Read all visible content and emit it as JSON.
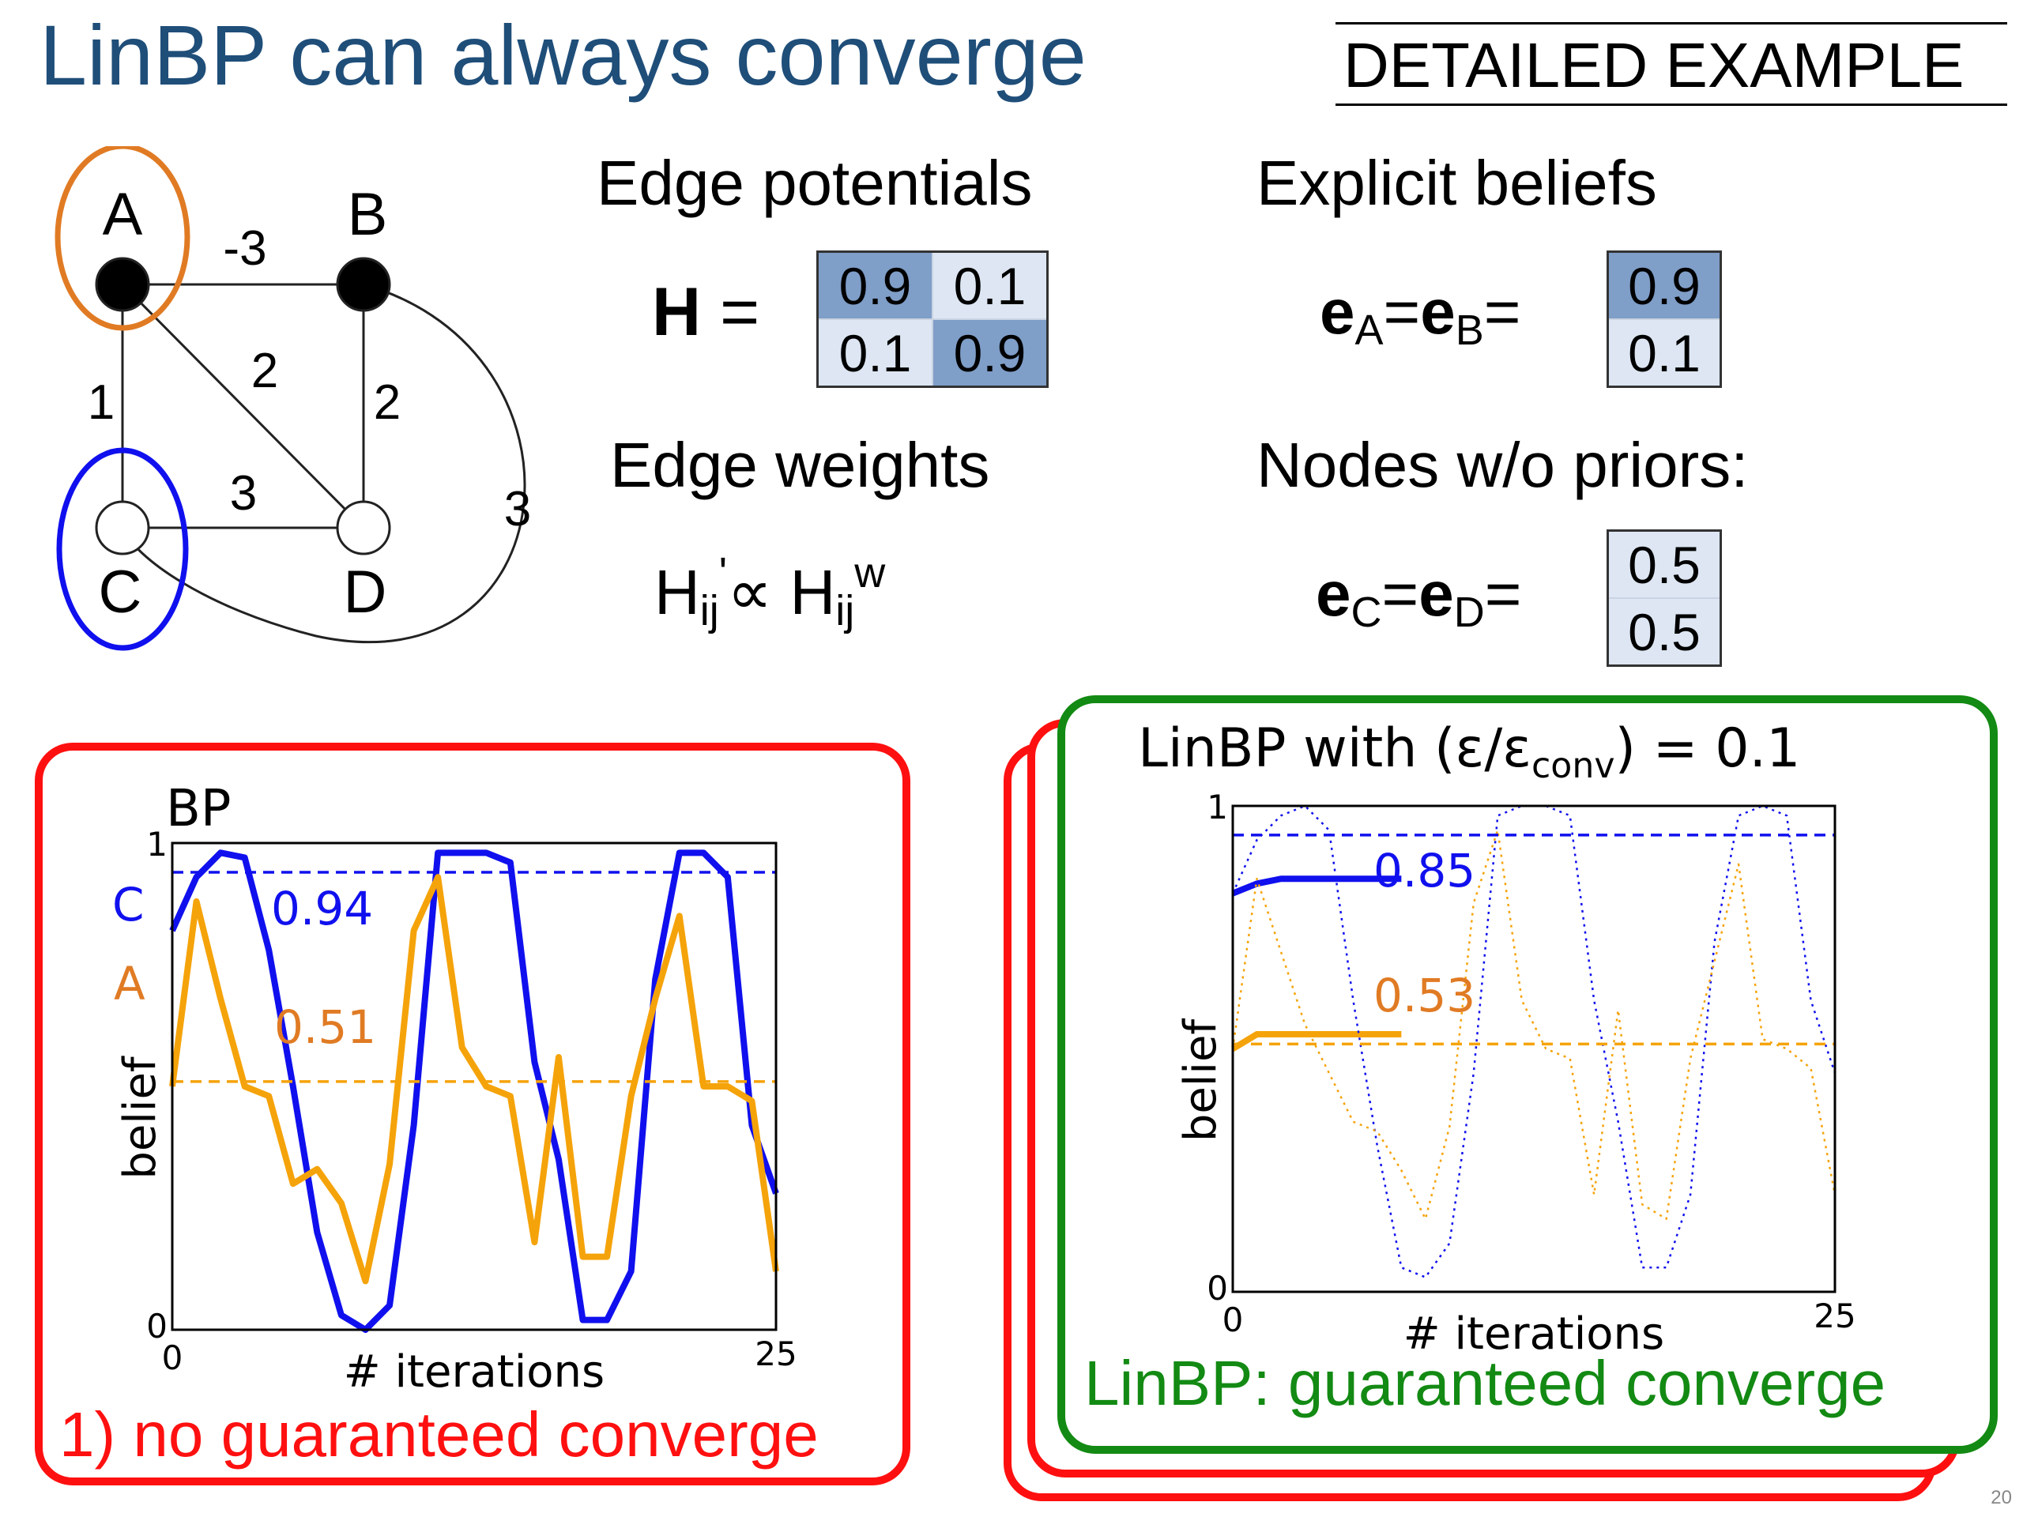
{
  "title": "LinBP can always converge",
  "tag": "DETAILED EXAMPLE",
  "graph": {
    "nodes": [
      {
        "name": "A",
        "fill": "#000000",
        "ring_color": "#e07b24"
      },
      {
        "name": "B",
        "fill": "#000000"
      },
      {
        "name": "C",
        "fill": "#ffffff",
        "ring_color": "#1010ee"
      },
      {
        "name": "D",
        "fill": "#ffffff"
      }
    ],
    "edges": [
      {
        "from": "A",
        "to": "B",
        "weight": "-3"
      },
      {
        "from": "A",
        "to": "C",
        "weight": "1"
      },
      {
        "from": "A",
        "to": "D",
        "weight": "2"
      },
      {
        "from": "B",
        "to": "D",
        "weight": "2"
      },
      {
        "from": "C",
        "to": "D",
        "weight": "3"
      },
      {
        "from": "B",
        "to": "C",
        "weight": "3"
      }
    ]
  },
  "edge_potentials": {
    "heading": "Edge potentials",
    "symbol": "H",
    "equals": "=",
    "matrix": [
      [
        "0.9",
        "0.1"
      ],
      [
        "0.1",
        "0.9"
      ]
    ]
  },
  "explicit_beliefs": {
    "heading": "Explicit beliefs",
    "e": "e",
    "sub_a": "A",
    "sub_b": "B",
    "equals": "=",
    "vector": [
      "0.9",
      "0.1"
    ]
  },
  "edge_weights": {
    "heading": "Edge weights",
    "h": "H",
    "sub": "ij",
    "prime": "'",
    "prop": "∝",
    "sup": "w"
  },
  "nodes_without_priors": {
    "heading": "Nodes w/o priors:",
    "e": "e",
    "sub_c": "C",
    "sub_d": "D",
    "equals": "=",
    "vector": [
      "0.5",
      "0.5"
    ]
  },
  "bp_panel": {
    "border_color": "#ff1010",
    "caption": "1) no guaranteed converge"
  },
  "linbp_panel": {
    "border_color": "#138a13",
    "back_border_color": "#ff1010",
    "caption": "LinBP: guaranteed converge"
  },
  "chart_data": [
    {
      "type": "line",
      "title": "BP",
      "xlabel": "# iterations",
      "ylabel": "belief",
      "xlim": [
        0,
        25
      ],
      "ylim": [
        0,
        1
      ],
      "x_ticks": [
        "0",
        "25"
      ],
      "y_ticks": [
        "0",
        "1"
      ],
      "series": [
        {
          "name": "C",
          "color": "#1010ee",
          "linestyle": "solid",
          "x": [
            0,
            1,
            2,
            3,
            4,
            5,
            6,
            7,
            8,
            9,
            10,
            11,
            12,
            13,
            14,
            15,
            16,
            17,
            18,
            19,
            20,
            21,
            22,
            23,
            24,
            25
          ],
          "y": [
            0.82,
            0.93,
            0.98,
            0.97,
            0.78,
            0.5,
            0.2,
            0.03,
            0.0,
            0.05,
            0.42,
            0.98,
            0.98,
            0.98,
            0.96,
            0.55,
            0.35,
            0.02,
            0.02,
            0.12,
            0.72,
            0.98,
            0.98,
            0.93,
            0.42,
            0.28
          ]
        },
        {
          "name": "A",
          "color": "#f5a30a",
          "linestyle": "solid",
          "x": [
            0,
            1,
            2,
            3,
            4,
            5,
            6,
            7,
            8,
            9,
            10,
            11,
            12,
            13,
            14,
            15,
            16,
            17,
            18,
            19,
            20,
            21,
            22,
            23,
            24,
            25
          ],
          "y": [
            0.5,
            0.88,
            0.68,
            0.5,
            0.48,
            0.3,
            0.33,
            0.26,
            0.1,
            0.34,
            0.82,
            0.93,
            0.58,
            0.5,
            0.48,
            0.18,
            0.56,
            0.15,
            0.15,
            0.48,
            0.68,
            0.85,
            0.5,
            0.5,
            0.47,
            0.12
          ]
        },
        {
          "name": "",
          "color": "#1010ee",
          "linestyle": "dashed",
          "x": [
            0,
            25
          ],
          "y": [
            0.94,
            0.94
          ]
        },
        {
          "name": "",
          "color": "#f5a30a",
          "linestyle": "dashed",
          "x": [
            0,
            25
          ],
          "y": [
            0.51,
            0.51
          ]
        }
      ],
      "annotations": [
        {
          "text": "C",
          "color": "#1010ee"
        },
        {
          "text": "A",
          "color": "#e07b24"
        },
        {
          "text": "0.94",
          "color": "#1010ee"
        },
        {
          "text": "0.51",
          "color": "#e07b24"
        }
      ]
    },
    {
      "type": "line",
      "title": "LinBP with (ε/ε_conv) = 0.1",
      "title_main": "LinBP with (ε/ε",
      "title_sub": "conv",
      "title_tail": ") = 0.1",
      "xlabel": "# iterations",
      "ylabel": "belief",
      "xlim": [
        0,
        25
      ],
      "ylim": [
        0,
        1
      ],
      "x_ticks": [
        "0",
        "25"
      ],
      "y_ticks": [
        "0",
        "1"
      ],
      "series": [
        {
          "name": "C",
          "color": "#1010ee",
          "linestyle": "solid",
          "x": [
            0,
            1,
            2,
            3,
            4,
            5,
            6,
            7
          ],
          "y": [
            0.82,
            0.84,
            0.85,
            0.85,
            0.85,
            0.85,
            0.85,
            0.85
          ]
        },
        {
          "name": "A",
          "color": "#f5a30a",
          "linestyle": "solid",
          "x": [
            0,
            1,
            2,
            3,
            4,
            5,
            6,
            7
          ],
          "y": [
            0.5,
            0.53,
            0.53,
            0.53,
            0.53,
            0.53,
            0.53,
            0.53
          ]
        },
        {
          "name": "",
          "color": "#1010ee",
          "linestyle": "dotted",
          "x": [
            0,
            1,
            2,
            3,
            4,
            5,
            6,
            7,
            8,
            9,
            10,
            11,
            12,
            13,
            14,
            15,
            16,
            17,
            18,
            19,
            20,
            21,
            22,
            23,
            24,
            25
          ],
          "y": [
            0.82,
            0.93,
            0.98,
            1.0,
            0.95,
            0.6,
            0.3,
            0.05,
            0.03,
            0.1,
            0.45,
            0.98,
            1.0,
            1.0,
            0.98,
            0.6,
            0.35,
            0.05,
            0.05,
            0.2,
            0.72,
            0.98,
            1.0,
            0.98,
            0.6,
            0.45
          ]
        },
        {
          "name": "",
          "color": "#f5a30a",
          "linestyle": "dotted",
          "x": [
            0,
            1,
            2,
            3,
            4,
            5,
            6,
            7,
            8,
            9,
            10,
            11,
            12,
            13,
            14,
            15,
            16,
            17,
            18,
            19,
            20,
            21,
            22,
            23,
            24,
            25
          ],
          "y": [
            0.5,
            0.85,
            0.7,
            0.55,
            0.45,
            0.35,
            0.33,
            0.25,
            0.15,
            0.34,
            0.8,
            0.95,
            0.6,
            0.5,
            0.48,
            0.2,
            0.58,
            0.18,
            0.15,
            0.48,
            0.68,
            0.88,
            0.52,
            0.5,
            0.46,
            0.2
          ]
        },
        {
          "name": "",
          "color": "#1010ee",
          "linestyle": "dashed",
          "x": [
            0,
            25
          ],
          "y": [
            0.94,
            0.94
          ]
        },
        {
          "name": "",
          "color": "#f5a30a",
          "linestyle": "dashed",
          "x": [
            0,
            25
          ],
          "y": [
            0.51,
            0.51
          ]
        }
      ],
      "annotations": [
        {
          "text": "0.85",
          "color": "#1010ee"
        },
        {
          "text": "0.53",
          "color": "#e07b24"
        }
      ]
    }
  ],
  "page_number": "20"
}
